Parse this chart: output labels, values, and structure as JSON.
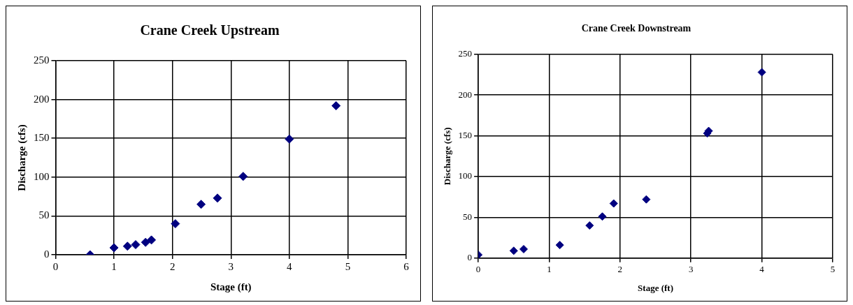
{
  "chart_data": [
    {
      "type": "scatter",
      "title": "Crane Creek Upstream",
      "xlabel": "Stage (ft)",
      "ylabel": "Discharge (cfs)",
      "marker": "diamond",
      "grid": true,
      "legend": false,
      "xlim": [
        0,
        6
      ],
      "xticks": [
        0,
        1,
        2,
        3,
        4,
        5,
        6
      ],
      "ylim": [
        0,
        250
      ],
      "yticks": [
        0,
        50,
        100,
        150,
        200,
        250
      ],
      "series": [
        {
          "color": "#000080",
          "x": [
            0.59,
            1.0,
            1.23,
            1.37,
            1.54,
            1.64,
            2.05,
            2.49,
            2.77,
            3.21,
            4.0,
            4.8
          ],
          "values": [
            0,
            9,
            11,
            13,
            16,
            19,
            40,
            65,
            73,
            101,
            149,
            192
          ]
        }
      ]
    },
    {
      "type": "scatter",
      "title": "Crane Creek Downstream",
      "xlabel": "Stage (ft)",
      "ylabel": "Discharge (cfs)",
      "marker": "diamond",
      "grid": true,
      "legend": false,
      "xlim": [
        0,
        5
      ],
      "xticks": [
        0,
        1,
        2,
        3,
        4,
        5
      ],
      "ylim": [
        0,
        250
      ],
      "yticks": [
        0,
        50,
        100,
        150,
        200,
        250
      ],
      "series": [
        {
          "color": "#000080",
          "x": [
            0,
            0.5,
            0.64,
            1.15,
            1.57,
            1.75,
            1.91,
            2.37,
            3.23,
            3.25,
            4.0
          ],
          "values": [
            4,
            9,
            11,
            16,
            40,
            51,
            67,
            72,
            153,
            156,
            228
          ]
        }
      ]
    }
  ]
}
